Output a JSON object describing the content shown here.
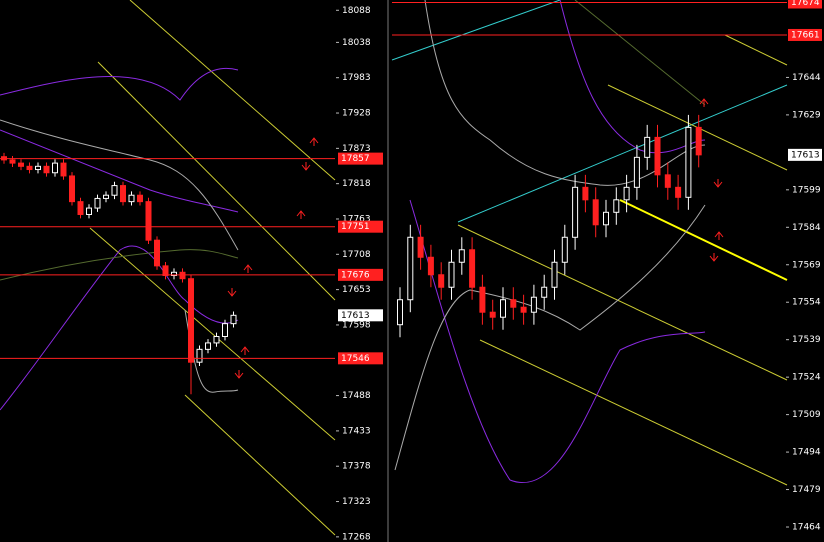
{
  "chart_data": [
    {
      "type": "candlestick",
      "open": [
        17860,
        17855,
        17850,
        17845,
        17840,
        17845,
        17835,
        17850,
        17830,
        17790,
        17770,
        17780,
        17795,
        17800,
        17815,
        17790,
        17800,
        17790,
        17730,
        17690,
        17675,
        17680,
        17670,
        17540,
        17560,
        17570,
        17580,
        17600
      ],
      "high": [
        17866,
        17861,
        17856,
        17851,
        17851,
        17851,
        17856,
        17856,
        17836,
        17796,
        17786,
        17801,
        17806,
        17821,
        17821,
        17806,
        17806,
        17796,
        17736,
        17696,
        17686,
        17686,
        17676,
        17566,
        17576,
        17586,
        17606,
        17619
      ],
      "low": [
        17849,
        17844,
        17839,
        17834,
        17834,
        17829,
        17829,
        17824,
        17784,
        17764,
        17764,
        17774,
        17789,
        17794,
        17784,
        17784,
        17784,
        17724,
        17684,
        17669,
        17669,
        17664,
        17490,
        17534,
        17554,
        17564,
        17574,
        17594
      ],
      "close": [
        17855,
        17850,
        17845,
        17840,
        17845,
        17835,
        17850,
        17830,
        17790,
        17770,
        17780,
        17795,
        17800,
        17815,
        17790,
        17800,
        17790,
        17730,
        17690,
        17675,
        17680,
        17670,
        17540,
        17560,
        17570,
        17580,
        17600,
        17613
      ],
      "ylim": [
        17260,
        18104
      ],
      "yticks": [
        18088,
        18038,
        17983,
        17928,
        17873,
        17818,
        17763,
        17708,
        17653,
        17598,
        17488,
        17433,
        17378,
        17323,
        17268
      ],
      "levels": [
        17857,
        17751,
        17676,
        17546
      ],
      "last": 17613
    },
    {
      "type": "candlestick",
      "open": [
        17545,
        17555,
        17580,
        17572,
        17565,
        17560,
        17570,
        17575,
        17560,
        17550,
        17548,
        17555,
        17552,
        17550,
        17556,
        17560,
        17570,
        17580,
        17600,
        17595,
        17585,
        17590,
        17595,
        17600,
        17612,
        17620,
        17605,
        17600,
        17596,
        17624
      ],
      "high": [
        17560,
        17585,
        17585,
        17577,
        17570,
        17575,
        17580,
        17580,
        17565,
        17555,
        17560,
        17560,
        17557,
        17561,
        17565,
        17575,
        17585,
        17605,
        17605,
        17600,
        17595,
        17600,
        17605,
        17617,
        17625,
        17625,
        17610,
        17605,
        17629,
        17629
      ],
      "low": [
        17540,
        17550,
        17567,
        17560,
        17555,
        17555,
        17565,
        17555,
        17545,
        17543,
        17543,
        17547,
        17545,
        17545,
        17551,
        17555,
        17565,
        17575,
        17590,
        17580,
        17580,
        17585,
        17590,
        17595,
        17607,
        17600,
        17595,
        17591,
        17591,
        17608
      ],
      "close": [
        17555,
        17580,
        17572,
        17565,
        17560,
        17570,
        17575,
        17560,
        17550,
        17548,
        17555,
        17552,
        17550,
        17556,
        17560,
        17570,
        17580,
        17600,
        17595,
        17585,
        17590,
        17595,
        17600,
        17612,
        17620,
        17605,
        17600,
        17596,
        17624,
        17613
      ],
      "ylim": [
        17458,
        17675
      ],
      "yticks": [
        17644,
        17629,
        17599,
        17584,
        17569,
        17554,
        17539,
        17524,
        17509,
        17494,
        17479,
        17464
      ],
      "levels": [
        17674,
        17661
      ],
      "last": 17613
    }
  ]
}
